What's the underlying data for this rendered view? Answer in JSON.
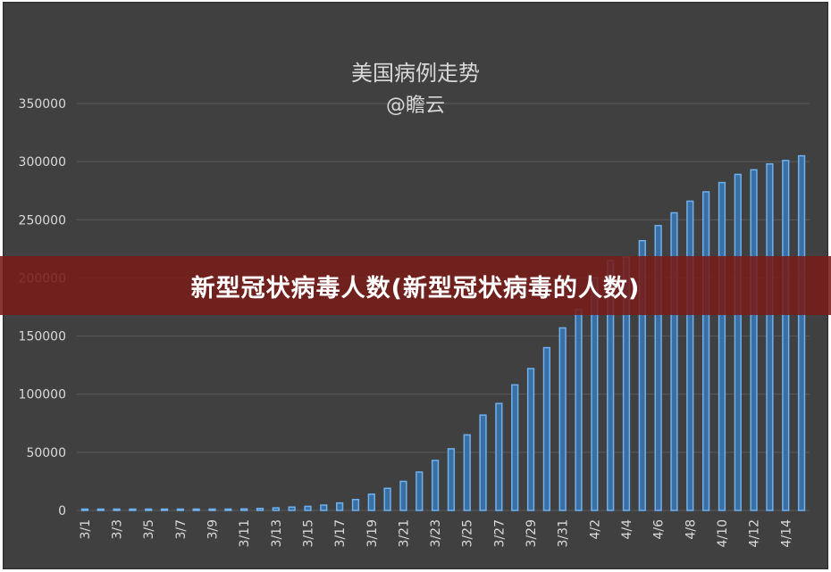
{
  "overlay_caption": "新型冠状病毒人数(新型冠状病毒的人数)",
  "colors": {
    "background": "#404040",
    "bar_fill": "#3a6fa3",
    "bar_stroke": "#6fb0ee",
    "grid": "#5a5a5a",
    "text": "#d9d9d9",
    "banner": "#7a1c18"
  },
  "chart_data": {
    "type": "bar",
    "title": "美国病例走势",
    "subtitle": "@瞻云",
    "xlabel": "",
    "ylabel": "",
    "ylim": [
      0,
      350000
    ],
    "yticks": [
      0,
      50000,
      100000,
      150000,
      200000,
      250000,
      300000,
      350000
    ],
    "grid": true,
    "legend": "none",
    "categories": [
      "3/1",
      "3/2",
      "3/3",
      "3/4",
      "3/5",
      "3/6",
      "3/7",
      "3/8",
      "3/9",
      "3/10",
      "3/11",
      "3/12",
      "3/13",
      "3/14",
      "3/15",
      "3/16",
      "3/17",
      "3/18",
      "3/19",
      "3/20",
      "3/21",
      "3/22",
      "3/23",
      "3/24",
      "3/25",
      "3/26",
      "3/27",
      "3/28",
      "3/29",
      "3/30",
      "3/31",
      "4/1",
      "4/2",
      "4/3",
      "4/4",
      "4/5",
      "4/6",
      "4/7",
      "4/8",
      "4/9",
      "4/10",
      "4/11",
      "4/12",
      "4/13",
      "4/14",
      "4/15"
    ],
    "tick_labels": [
      "3/1",
      "3/3",
      "3/5",
      "3/7",
      "3/9",
      "3/11",
      "3/13",
      "3/15",
      "3/17",
      "3/19",
      "3/21",
      "3/23",
      "3/25",
      "3/27",
      "3/29",
      "3/31",
      "4/2",
      "4/4",
      "4/6",
      "4/8",
      "4/10",
      "4/12",
      "4/14"
    ],
    "values": [
      75,
      100,
      125,
      160,
      220,
      320,
      440,
      540,
      720,
      1000,
      1300,
      1700,
      2200,
      2900,
      3500,
      4600,
      6400,
      9400,
      14000,
      19000,
      25000,
      33000,
      43000,
      53000,
      65000,
      82000,
      92000,
      108000,
      122000,
      140000,
      157000,
      173000,
      200000,
      215000,
      218000,
      232000,
      245000,
      256000,
      266000,
      274000,
      282000,
      289000,
      293000,
      298000,
      301000,
      305000
    ]
  }
}
